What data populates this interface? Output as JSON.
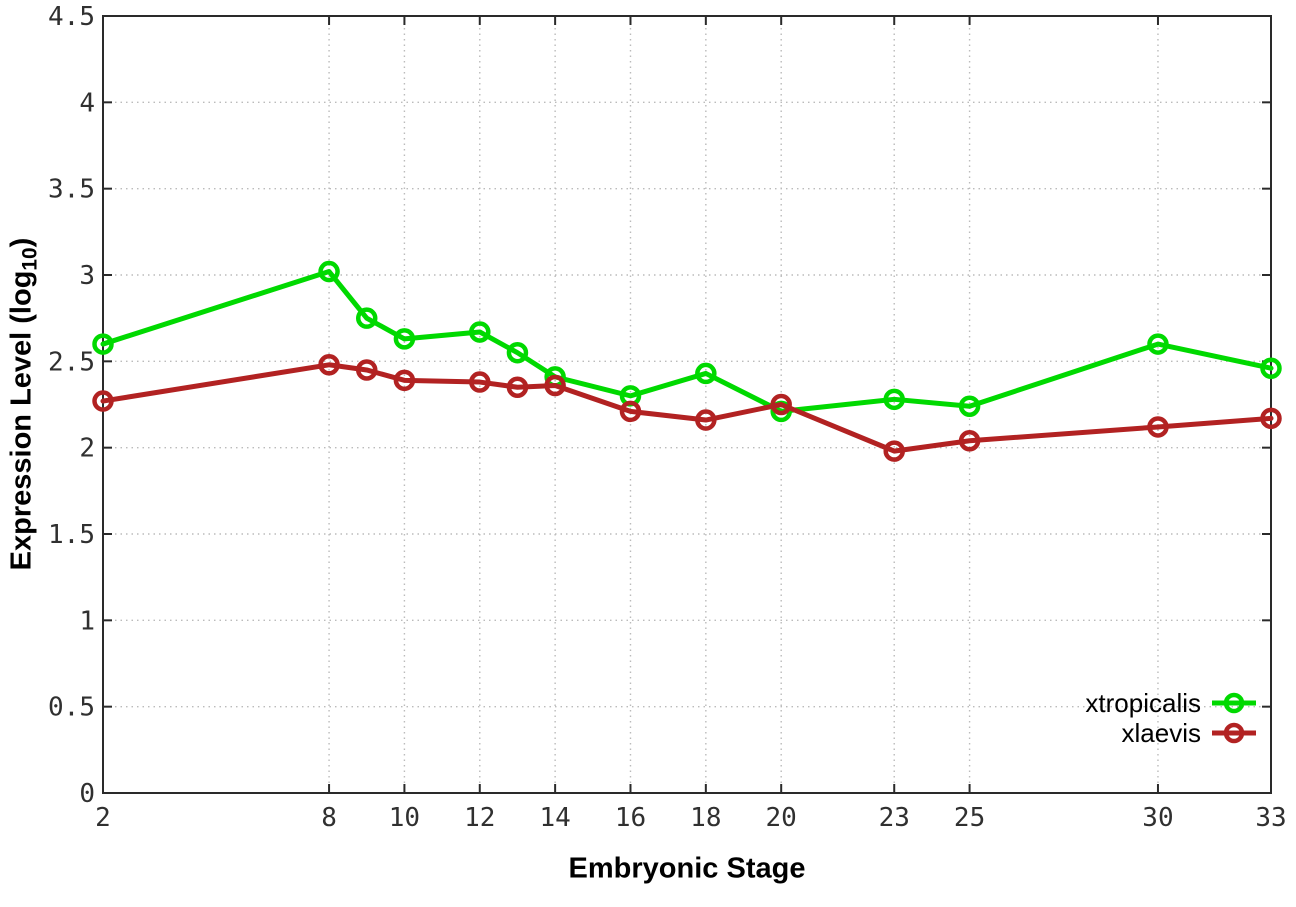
{
  "figure": {
    "ylabel_prefix": "Expression Level (log",
    "ylabel_sub": "10",
    "ylabel_suffix": ")",
    "xlabel": "Embryonic Stage"
  },
  "chart_data": {
    "type": "line",
    "title": "",
    "xlabel": "Embryonic Stage",
    "ylabel": "Expression Level (log10)",
    "x": [
      2,
      8,
      9,
      10,
      12,
      13,
      14,
      16,
      18,
      20,
      23,
      25,
      30,
      33
    ],
    "series": [
      {
        "name": "xtropicalis",
        "color": "#00d900",
        "values": [
          2.6,
          3.02,
          2.75,
          2.63,
          2.67,
          2.55,
          2.41,
          2.3,
          2.43,
          2.21,
          2.28,
          2.24,
          2.6,
          2.46
        ]
      },
      {
        "name": "xlaevis",
        "color": "#b22222",
        "values": [
          2.27,
          2.48,
          2.45,
          2.39,
          2.38,
          2.35,
          2.36,
          2.21,
          2.16,
          2.25,
          1.98,
          2.04,
          2.12,
          2.17
        ]
      }
    ],
    "xlim": [
      2,
      33
    ],
    "ylim": [
      0,
      4.5
    ],
    "xticks": [
      2,
      8,
      10,
      12,
      14,
      16,
      18,
      20,
      23,
      25,
      30,
      33
    ],
    "yticks": [
      0,
      0.5,
      1,
      1.5,
      2,
      2.5,
      3,
      3.5,
      4,
      4.5
    ],
    "grid": true,
    "grid_style": "dotted",
    "legend_position": "bottom-right-inside",
    "marker": "open-circle",
    "colors": {
      "border": "#2a2a2a",
      "grid": "#bbbbbb",
      "tick_text": "#303030"
    }
  }
}
